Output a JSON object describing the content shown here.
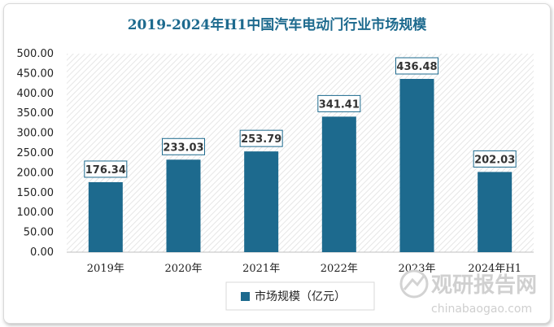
{
  "colors": {
    "bar": "#1d6a8e",
    "title": "#1d6a8e",
    "label_border": "#1d6a8e"
  },
  "watermark": {
    "cn": "观研报告网",
    "en": "chinabaogao.com"
  },
  "chart_data": {
    "type": "bar",
    "title": "2019-2024年H1中国汽车电动门行业市场规模",
    "categories": [
      "2019年",
      "2020年",
      "2021年",
      "2022年",
      "2023年",
      "2024年H1"
    ],
    "series": [
      {
        "name": "市场规模（亿元）",
        "values": [
          176.34,
          233.03,
          253.79,
          341.41,
          436.48,
          202.03
        ]
      }
    ],
    "value_labels": [
      "176.34",
      "233.03",
      "253.79",
      "341.41",
      "436.48",
      "202.03"
    ],
    "ylim": [
      0,
      500
    ],
    "yticks": [
      "0.00",
      "50.00",
      "100.00",
      "150.00",
      "200.00",
      "250.00",
      "300.00",
      "350.00",
      "400.00",
      "450.00",
      "500.00"
    ],
    "grid": false,
    "legend": "bottom"
  }
}
